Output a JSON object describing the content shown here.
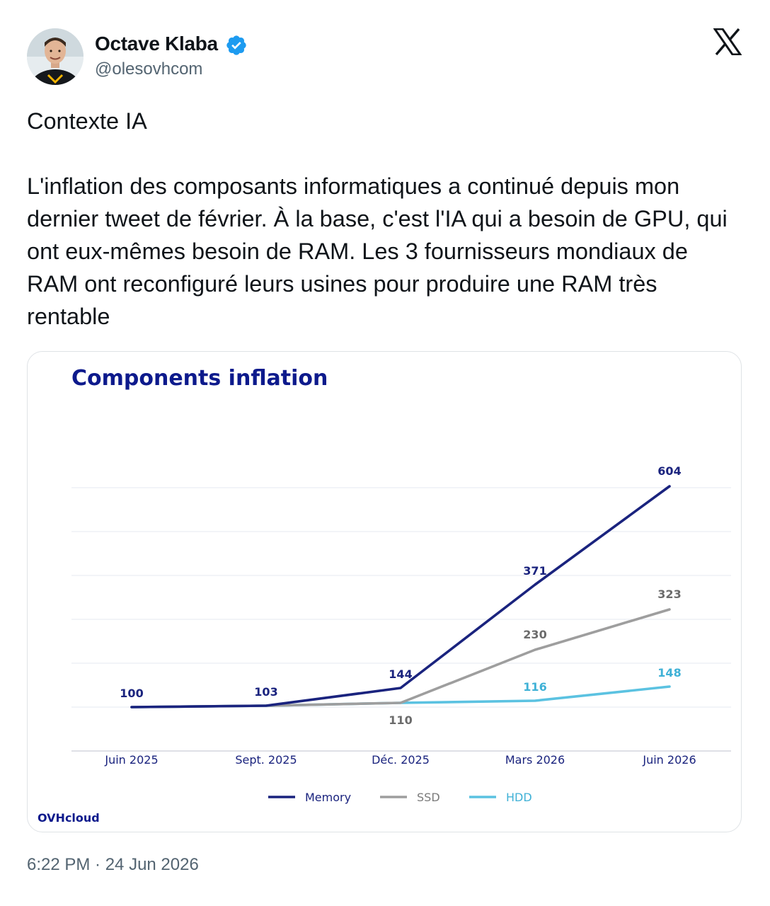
{
  "author": {
    "name": "Octave Klaba",
    "handle": "@olesovhcom",
    "verified": true,
    "avatar_icon": "profile-photo"
  },
  "platform_icon": "x-logo-icon",
  "tweet": {
    "paragraphs": [
      "Contexte IA",
      "L'inflation des composants informatiques a continué depuis mon dernier tweet de février. À la base, c'est l'IA qui a besoin de GPU, qui ont eux-mêmes besoin de RAM. Les 3 fournisseurs mondiaux de RAM ont reconfiguré leurs usines pour produire une RAM très rentable"
    ],
    "timestamp": "6:22 PM · 24 Jun 2026"
  },
  "colors": {
    "verified_blue": "#1d9bf0",
    "memory": "#1a237e",
    "ssd": "#9e9e9e",
    "hdd": "#5bc2e1",
    "title": "#0d1a8c"
  },
  "chart_data": {
    "type": "line",
    "title": "Components inflation",
    "categories": [
      "Juin 2025",
      "Sept. 2025",
      "Déc. 2025",
      "Mars 2026",
      "Juin 2026"
    ],
    "series": [
      {
        "name": "Memory",
        "color": "#1a237e",
        "values": [
          100,
          103,
          144,
          371,
          604
        ],
        "labels": [
          "100",
          "103",
          "144",
          "371",
          "604"
        ]
      },
      {
        "name": "SSD",
        "color": "#9e9e9e",
        "values": [
          100,
          103,
          110,
          230,
          323
        ],
        "labels": [
          "",
          "",
          "110",
          "230",
          "323"
        ]
      },
      {
        "name": "HDD",
        "color": "#5bc2e1",
        "values": [
          100,
          103,
          110,
          116,
          148
        ],
        "labels": [
          "",
          "",
          "",
          "116",
          "148"
        ]
      }
    ],
    "ylim": [
      0,
      640
    ],
    "grid": true,
    "legend": "bottom-center",
    "source": "OVHcloud"
  }
}
